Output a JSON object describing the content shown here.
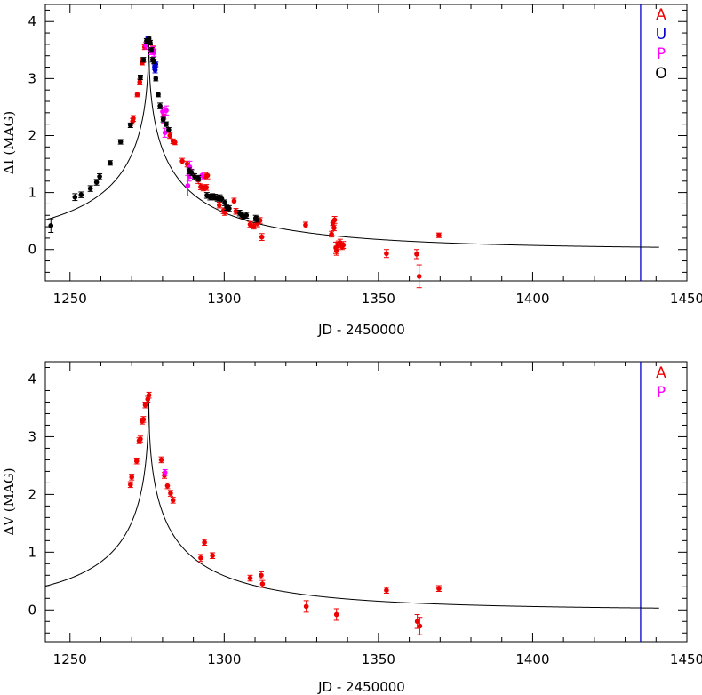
{
  "chart_data": [
    {
      "type": "scatter",
      "xlabel": "JD - 2450000",
      "ylabel": "ΔI (MAG)",
      "xlim": [
        1242,
        1450
      ],
      "ylim": [
        -0.55,
        4.3
      ],
      "xticks": [
        1250,
        1300,
        1350,
        1400,
        1450
      ],
      "xtick_labels": [
        "1250",
        "1300",
        "1350",
        "1400",
        "1450"
      ],
      "yticks": [
        0,
        1,
        2,
        3,
        4
      ],
      "ytick_labels": [
        "0",
        "1",
        "2",
        "3",
        "4"
      ],
      "vline_x": 1435,
      "vline_color": "#0000cc",
      "model_curve": {
        "t0": 1275.5,
        "amp": 3.7,
        "w_rise": 11.0,
        "w_decay": 10.2,
        "x_end": 1441
      },
      "legend_position": "top-right",
      "legend": [
        {
          "label": "A",
          "color": "#ee0000"
        },
        {
          "label": "U",
          "color": "#0000cc"
        },
        {
          "label": "P",
          "color": "#ff00ff"
        },
        {
          "label": "O",
          "color": "#000000"
        }
      ],
      "series": [
        {
          "name": "A",
          "color": "#ee0000",
          "points": [
            [
              1270.3,
              2.25,
              0.05
            ],
            [
              1270.5,
              2.3,
              0.05
            ],
            [
              1271.8,
              2.72,
              0.04
            ],
            [
              1272.6,
              2.94,
              0.05
            ],
            [
              1273.4,
              3.28,
              0.04
            ],
            [
              1273.6,
              3.32,
              0.04
            ],
            [
              1274.2,
              3.55,
              0.04
            ],
            [
              1276.8,
              3.52,
              0.05
            ],
            [
              1280.4,
              2.35,
              0.06
            ],
            [
              1282.4,
              2.0,
              0.05
            ],
            [
              1283.4,
              1.9,
              0.04
            ],
            [
              1284.0,
              1.88,
              0.04
            ],
            [
              1286.4,
              1.55,
              0.05
            ],
            [
              1288.0,
              1.5,
              0.05
            ],
            [
              1291.6,
              1.22,
              0.06
            ],
            [
              1292.4,
              1.1,
              0.05
            ],
            [
              1293.2,
              1.08,
              0.05
            ],
            [
              1293.8,
              1.28,
              0.06
            ],
            [
              1294.2,
              1.09,
              0.05
            ],
            [
              1294.6,
              1.3,
              0.06
            ],
            [
              1298.4,
              0.78,
              0.05
            ],
            [
              1299.8,
              0.68,
              0.05
            ],
            [
              1300.2,
              0.65,
              0.05
            ],
            [
              1303.2,
              0.85,
              0.05
            ],
            [
              1303.8,
              0.67,
              0.05
            ],
            [
              1306.0,
              0.6,
              0.05
            ],
            [
              1308.4,
              0.44,
              0.05
            ],
            [
              1309.6,
              0.41,
              0.05
            ],
            [
              1310.8,
              0.46,
              0.06
            ],
            [
              1311.6,
              0.51,
              0.05
            ],
            [
              1312.2,
              0.22,
              0.06
            ],
            [
              1326.4,
              0.43,
              0.05
            ],
            [
              1334.8,
              0.27,
              0.05
            ],
            [
              1335.2,
              0.47,
              0.05
            ],
            [
              1335.6,
              0.38,
              0.05
            ],
            [
              1335.8,
              0.52,
              0.06
            ],
            [
              1336.2,
              0.03,
              0.1
            ],
            [
              1336.4,
              -0.02,
              0.08
            ],
            [
              1337.0,
              0.09,
              0.06
            ],
            [
              1337.6,
              0.12,
              0.06
            ],
            [
              1338.2,
              0.05,
              0.05
            ],
            [
              1338.6,
              0.08,
              0.06
            ],
            [
              1352.6,
              -0.07,
              0.07
            ],
            [
              1362.4,
              -0.08,
              0.08
            ],
            [
              1363.2,
              -0.47,
              0.2
            ],
            [
              1369.6,
              0.25,
              0.04
            ]
          ]
        },
        {
          "name": "U",
          "color": "#0000cc",
          "points": [
            [
              1275.2,
              3.7,
              0.04
            ],
            [
              1277.4,
              3.2,
              0.04
            ],
            [
              1277.6,
              3.15,
              0.05
            ],
            [
              1277.8,
              3.25,
              0.04
            ]
          ]
        },
        {
          "name": "P",
          "color": "#ff00ff",
          "points": [
            [
              1274.6,
              3.58,
              0.06
            ],
            [
              1276.2,
              3.48,
              0.06
            ],
            [
              1277.0,
              3.5,
              0.06
            ],
            [
              1277.2,
              3.45,
              0.06
            ],
            [
              1280.0,
              2.42,
              0.08
            ],
            [
              1280.4,
              2.3,
              0.08
            ],
            [
              1280.8,
              2.05,
              0.08
            ],
            [
              1281.2,
              2.44,
              0.08
            ],
            [
              1288.2,
              1.12,
              0.18
            ],
            [
              1288.6,
              1.3,
              0.1
            ],
            [
              1288.8,
              1.45,
              0.1
            ],
            [
              1289.2,
              1.33,
              0.08
            ],
            [
              1292.8,
              1.3,
              0.06
            ]
          ]
        },
        {
          "name": "O",
          "color": "#000000",
          "points": [
            [
              1243.8,
              0.42,
              0.12
            ],
            [
              1251.6,
              0.92,
              0.06
            ],
            [
              1253.6,
              0.96,
              0.05
            ],
            [
              1256.6,
              1.07,
              0.05
            ],
            [
              1258.6,
              1.18,
              0.05
            ],
            [
              1259.6,
              1.28,
              0.05
            ],
            [
              1263.0,
              1.52,
              0.04
            ],
            [
              1266.4,
              1.89,
              0.04
            ],
            [
              1269.6,
              2.18,
              0.04
            ],
            [
              1272.8,
              3.02,
              0.04
            ],
            [
              1273.8,
              3.33,
              0.04
            ],
            [
              1274.8,
              3.66,
              0.04
            ],
            [
              1275.6,
              3.7,
              0.04
            ],
            [
              1276.0,
              3.63,
              0.04
            ],
            [
              1276.4,
              3.5,
              0.04
            ],
            [
              1276.8,
              3.33,
              0.04
            ],
            [
              1277.2,
              3.3,
              0.04
            ],
            [
              1277.8,
              3.0,
              0.04
            ],
            [
              1278.6,
              2.72,
              0.04
            ],
            [
              1279.2,
              2.52,
              0.05
            ],
            [
              1280.2,
              2.28,
              0.04
            ],
            [
              1281.2,
              2.2,
              0.04
            ],
            [
              1282.0,
              2.1,
              0.04
            ],
            [
              1288.6,
              1.38,
              0.05
            ],
            [
              1289.4,
              1.35,
              0.05
            ],
            [
              1290.4,
              1.28,
              0.05
            ],
            [
              1291.6,
              1.25,
              0.05
            ],
            [
              1294.4,
              0.95,
              0.05
            ],
            [
              1295.4,
              0.92,
              0.05
            ],
            [
              1296.2,
              0.93,
              0.05
            ],
            [
              1297.0,
              0.92,
              0.05
            ],
            [
              1297.8,
              0.9,
              0.05
            ],
            [
              1298.6,
              0.91,
              0.05
            ],
            [
              1299.2,
              0.89,
              0.05
            ],
            [
              1300.2,
              0.82,
              0.05
            ],
            [
              1300.8,
              0.74,
              0.05
            ],
            [
              1301.6,
              0.72,
              0.05
            ],
            [
              1305.0,
              0.64,
              0.05
            ],
            [
              1305.6,
              0.61,
              0.05
            ],
            [
              1306.4,
              0.57,
              0.05
            ],
            [
              1307.2,
              0.6,
              0.05
            ],
            [
              1310.2,
              0.55,
              0.05
            ],
            [
              1310.6,
              0.53,
              0.05
            ]
          ]
        }
      ]
    },
    {
      "type": "scatter",
      "xlabel": "JD - 2450000",
      "ylabel": "ΔV (MAG)",
      "xlim": [
        1242,
        1450
      ],
      "ylim": [
        -0.55,
        4.3
      ],
      "xticks": [
        1250,
        1300,
        1350,
        1400,
        1450
      ],
      "xtick_labels": [
        "1250",
        "1300",
        "1350",
        "1400",
        "1450"
      ],
      "yticks": [
        0,
        1,
        2,
        3,
        4
      ],
      "ytick_labels": [
        "0",
        "1",
        "2",
        "3",
        "4"
      ],
      "vline_x": 1435,
      "vline_color": "#0000cc",
      "model_curve": {
        "t0": 1275.5,
        "amp": 3.7,
        "w_rise": 8.8,
        "w_decay": 9.2,
        "x_end": 1441
      },
      "legend_position": "top-right",
      "legend": [
        {
          "label": "A",
          "color": "#ee0000"
        },
        {
          "label": "P",
          "color": "#ff00ff"
        }
      ],
      "series": [
        {
          "name": "A",
          "color": "#ee0000",
          "points": [
            [
              1269.6,
              2.17,
              0.05
            ],
            [
              1270.0,
              2.3,
              0.05
            ],
            [
              1271.6,
              2.58,
              0.05
            ],
            [
              1272.4,
              2.93,
              0.05
            ],
            [
              1272.8,
              2.96,
              0.05
            ],
            [
              1273.4,
              3.27,
              0.05
            ],
            [
              1273.8,
              3.3,
              0.05
            ],
            [
              1274.4,
              3.55,
              0.05
            ],
            [
              1275.2,
              3.65,
              0.05
            ],
            [
              1275.6,
              3.72,
              0.05
            ],
            [
              1279.6,
              2.6,
              0.05
            ],
            [
              1280.6,
              2.33,
              0.05
            ],
            [
              1281.6,
              2.15,
              0.05
            ],
            [
              1282.6,
              2.02,
              0.05
            ],
            [
              1283.4,
              1.9,
              0.05
            ],
            [
              1292.4,
              0.9,
              0.06
            ],
            [
              1293.6,
              1.17,
              0.05
            ],
            [
              1296.2,
              0.94,
              0.05
            ],
            [
              1308.4,
              0.55,
              0.05
            ],
            [
              1312.0,
              0.6,
              0.06
            ],
            [
              1312.4,
              0.45,
              0.06
            ],
            [
              1326.6,
              0.06,
              0.1
            ],
            [
              1336.4,
              -0.08,
              0.1
            ],
            [
              1352.6,
              0.34,
              0.05
            ],
            [
              1362.6,
              -0.2,
              0.12
            ],
            [
              1363.4,
              -0.28,
              0.15
            ],
            [
              1369.6,
              0.37,
              0.05
            ]
          ]
        },
        {
          "name": "P",
          "color": "#ff00ff",
          "points": [
            [
              1280.8,
              2.38,
              0.05
            ]
          ]
        }
      ]
    }
  ]
}
